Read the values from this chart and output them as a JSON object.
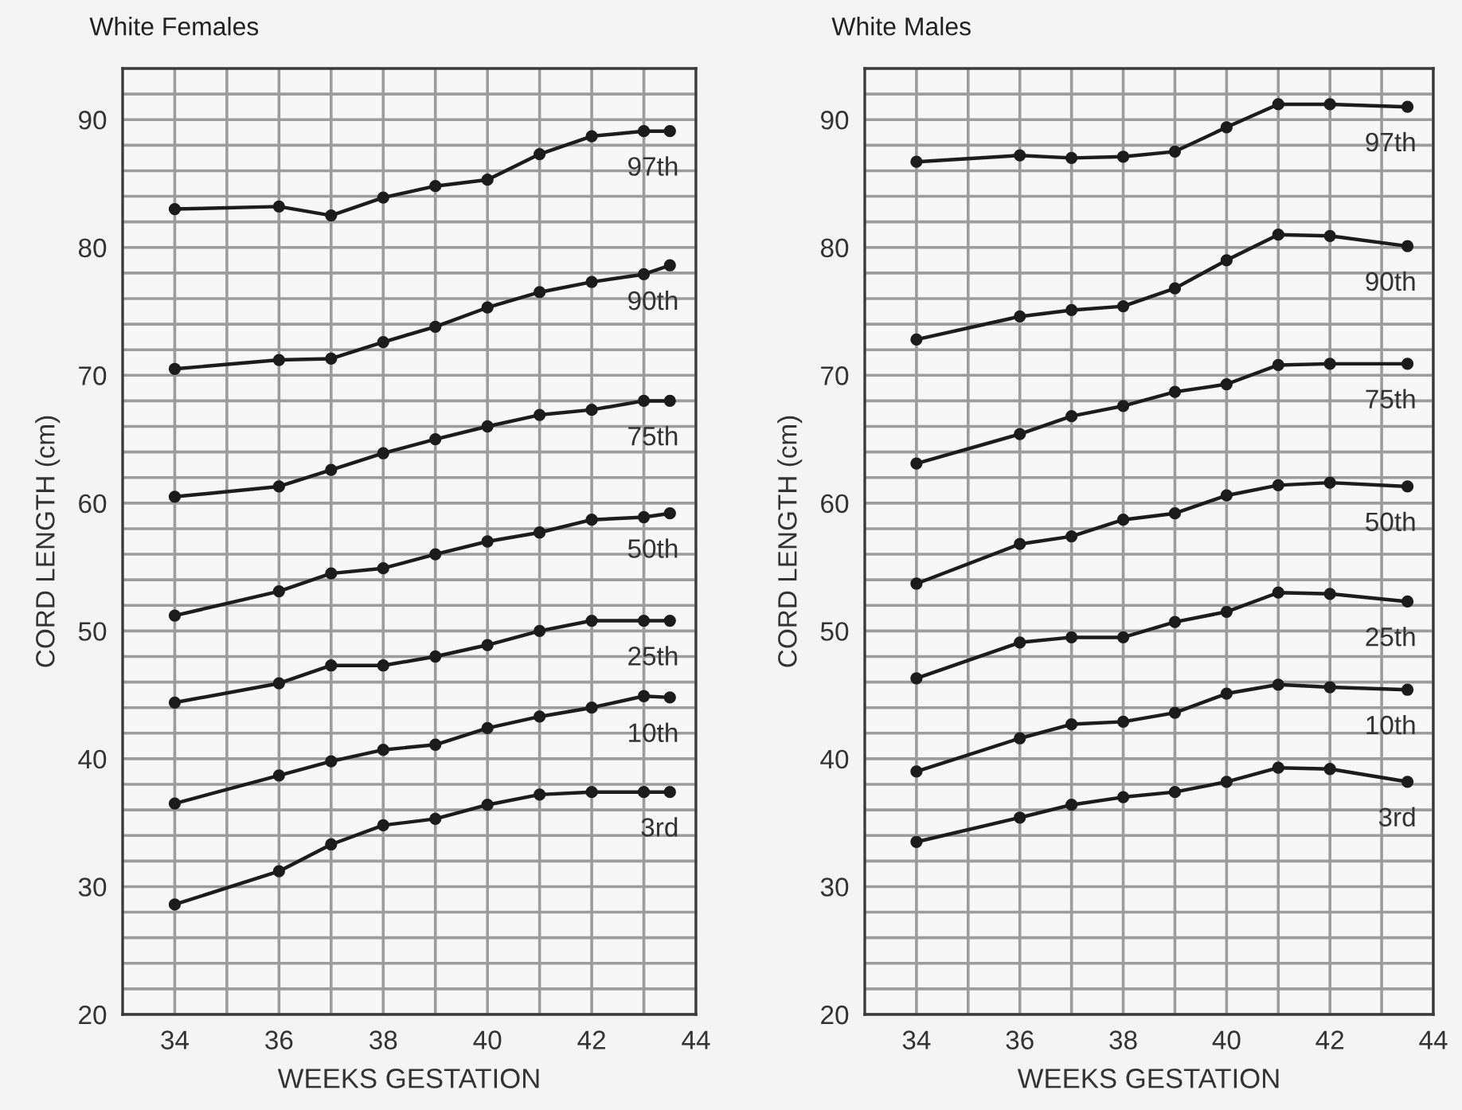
{
  "chart_data": [
    {
      "type": "line",
      "title": "White Females",
      "xlabel": "WEEKS GESTATION",
      "ylabel": "CORD LENGTH (cm)",
      "xlim": [
        33,
        44
      ],
      "ylim": [
        20,
        94
      ],
      "xticks": [
        34,
        {
          "value": 35,
          "label": null
        },
        36,
        {
          "value": 37,
          "label": null
        },
        38,
        {
          "value": 39,
          "label": null
        },
        40,
        {
          "value": 41,
          "label": null
        },
        42,
        {
          "value": 43,
          "label": null
        },
        44
      ],
      "yticks": [
        20,
        {
          "value": 22,
          "label": null
        },
        {
          "value": 24,
          "label": null
        },
        {
          "value": 26,
          "label": null
        },
        {
          "value": 28,
          "label": null
        },
        30,
        {
          "value": 32,
          "label": null
        },
        {
          "value": 34,
          "label": null
        },
        {
          "value": 36,
          "label": null
        },
        {
          "value": 38,
          "label": null
        },
        40,
        {
          "value": 42,
          "label": null
        },
        {
          "value": 44,
          "label": null
        },
        {
          "value": 46,
          "label": null
        },
        {
          "value": 48,
          "label": null
        },
        50,
        {
          "value": 52,
          "label": null
        },
        {
          "value": 54,
          "label": null
        },
        {
          "value": 56,
          "label": null
        },
        {
          "value": 58,
          "label": null
        },
        60,
        {
          "value": 62,
          "label": null
        },
        {
          "value": 64,
          "label": null
        },
        {
          "value": 66,
          "label": null
        },
        {
          "value": 68,
          "label": null
        },
        70,
        {
          "value": 72,
          "label": null
        },
        {
          "value": 74,
          "label": null
        },
        {
          "value": 76,
          "label": null
        },
        {
          "value": 78,
          "label": null
        },
        80,
        {
          "value": 82,
          "label": null
        },
        {
          "value": 84,
          "label": null
        },
        {
          "value": 86,
          "label": null
        },
        {
          "value": 88,
          "label": null
        },
        90,
        {
          "value": 92,
          "label": null
        }
      ],
      "grid": true,
      "marker": "circle",
      "line_style": "solid",
      "x": [
        34,
        36,
        37,
        38,
        39,
        40,
        41,
        42,
        43,
        43.5
      ],
      "series": [
        {
          "name": "97th",
          "color": "#1c1c1c",
          "values": [
            83.0,
            83.2,
            82.5,
            83.9,
            84.8,
            85.3,
            87.3,
            88.7,
            89.1,
            89.1
          ]
        },
        {
          "name": "90th",
          "color": "#1c1c1c",
          "values": [
            70.5,
            71.2,
            71.3,
            72.6,
            73.8,
            75.3,
            76.5,
            77.3,
            77.9,
            78.6
          ]
        },
        {
          "name": "75th",
          "color": "#1c1c1c",
          "values": [
            60.5,
            61.3,
            62.6,
            63.9,
            65.0,
            66.0,
            66.9,
            67.3,
            68.0,
            68.0
          ]
        },
        {
          "name": "50th",
          "color": "#1c1c1c",
          "values": [
            51.2,
            53.1,
            54.5,
            54.9,
            56.0,
            57.0,
            57.7,
            58.7,
            58.9,
            59.2
          ]
        },
        {
          "name": "25th",
          "color": "#1c1c1c",
          "values": [
            44.4,
            45.9,
            47.3,
            47.3,
            48.0,
            48.9,
            50.0,
            50.8,
            50.8,
            50.8
          ]
        },
        {
          "name": "10th",
          "color": "#1c1c1c",
          "values": [
            36.5,
            38.7,
            39.8,
            40.7,
            41.1,
            42.4,
            43.3,
            44.0,
            44.9,
            44.8
          ]
        },
        {
          "name": "3rd",
          "color": "#1c1c1c",
          "values": [
            28.6,
            31.2,
            33.3,
            34.8,
            35.3,
            36.4,
            37.2,
            37.4,
            37.4,
            37.4
          ]
        }
      ]
    },
    {
      "type": "line",
      "title": "White Males",
      "xlabel": "WEEKS GESTATION",
      "ylabel": "CORD LENGTH (cm)",
      "xlim": [
        33,
        44
      ],
      "ylim": [
        20,
        94
      ],
      "xticks": [
        34,
        {
          "value": 35,
          "label": null
        },
        36,
        {
          "value": 37,
          "label": null
        },
        38,
        {
          "value": 39,
          "label": null
        },
        40,
        {
          "value": 41,
          "label": null
        },
        42,
        {
          "value": 43,
          "label": null
        },
        44
      ],
      "yticks": [
        20,
        {
          "value": 22,
          "label": null
        },
        {
          "value": 24,
          "label": null
        },
        {
          "value": 26,
          "label": null
        },
        {
          "value": 28,
          "label": null
        },
        30,
        {
          "value": 32,
          "label": null
        },
        {
          "value": 34,
          "label": null
        },
        {
          "value": 36,
          "label": null
        },
        {
          "value": 38,
          "label": null
        },
        40,
        {
          "value": 42,
          "label": null
        },
        {
          "value": 44,
          "label": null
        },
        {
          "value": 46,
          "label": null
        },
        {
          "value": 48,
          "label": null
        },
        50,
        {
          "value": 52,
          "label": null
        },
        {
          "value": 54,
          "label": null
        },
        {
          "value": 56,
          "label": null
        },
        {
          "value": 58,
          "label": null
        },
        60,
        {
          "value": 62,
          "label": null
        },
        {
          "value": 64,
          "label": null
        },
        {
          "value": 66,
          "label": null
        },
        {
          "value": 68,
          "label": null
        },
        70,
        {
          "value": 72,
          "label": null
        },
        {
          "value": 74,
          "label": null
        },
        {
          "value": 76,
          "label": null
        },
        {
          "value": 78,
          "label": null
        },
        80,
        {
          "value": 82,
          "label": null
        },
        {
          "value": 84,
          "label": null
        },
        {
          "value": 86,
          "label": null
        },
        {
          "value": 88,
          "label": null
        },
        90,
        {
          "value": 92,
          "label": null
        }
      ],
      "grid": true,
      "marker": "circle",
      "line_style": "solid",
      "x": [
        34,
        36,
        37,
        38,
        39,
        40,
        41,
        42,
        43.5
      ],
      "series": [
        {
          "name": "97th",
          "color": "#1c1c1c",
          "values": [
            86.7,
            87.2,
            87.0,
            87.1,
            87.5,
            89.4,
            91.2,
            91.2,
            91.0
          ]
        },
        {
          "name": "90th",
          "color": "#1c1c1c",
          "values": [
            72.8,
            74.6,
            75.1,
            75.4,
            76.8,
            79.0,
            81.0,
            80.9,
            80.1
          ]
        },
        {
          "name": "75th",
          "color": "#1c1c1c",
          "values": [
            63.1,
            65.4,
            66.8,
            67.6,
            68.7,
            69.3,
            70.8,
            70.9,
            70.9
          ]
        },
        {
          "name": "50th",
          "color": "#1c1c1c",
          "values": [
            53.7,
            56.8,
            57.4,
            58.7,
            59.2,
            60.6,
            61.4,
            61.6,
            61.3
          ]
        },
        {
          "name": "25th",
          "color": "#1c1c1c",
          "values": [
            46.3,
            49.1,
            49.5,
            49.5,
            50.7,
            51.5,
            53.0,
            52.9,
            52.3
          ]
        },
        {
          "name": "10th",
          "color": "#1c1c1c",
          "values": [
            39.0,
            41.6,
            42.7,
            42.9,
            43.6,
            45.1,
            45.8,
            45.6,
            45.4
          ]
        },
        {
          "name": "3rd",
          "color": "#1c1c1c",
          "values": [
            33.5,
            35.4,
            36.4,
            37.0,
            37.4,
            38.2,
            39.3,
            39.2,
            38.2
          ]
        }
      ]
    }
  ]
}
